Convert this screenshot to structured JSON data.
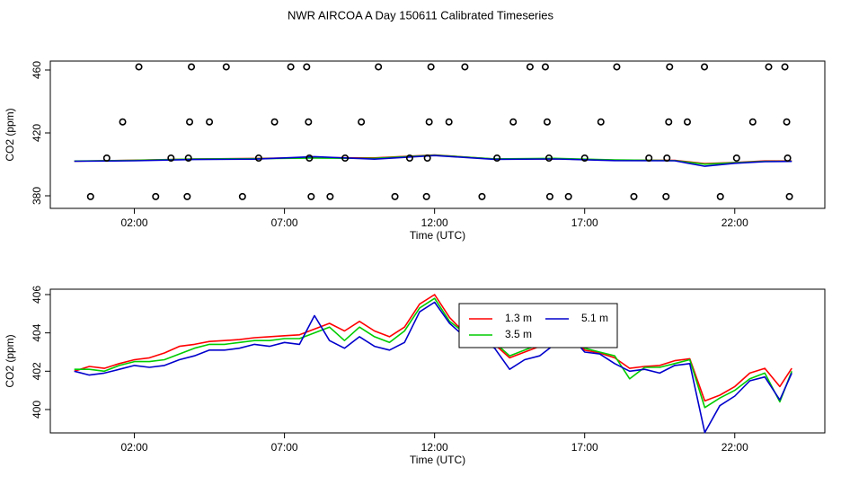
{
  "title": "NWR AIRCOA A  Day 150611  Calibrated Timeseries",
  "chart_data": [
    {
      "type": "line",
      "xlabel": "Time (UTC)",
      "ylabel": "CO2 (ppm)",
      "xlim": [
        -0.8,
        25.0
      ],
      "xticks": [
        {
          "value": 2,
          "label": "02:00"
        },
        {
          "value": 7,
          "label": "07:00"
        },
        {
          "value": 12,
          "label": "12:00"
        },
        {
          "value": 17,
          "label": "17:00"
        },
        {
          "value": 22,
          "label": "22:00"
        }
      ],
      "ylim": [
        372,
        465.7
      ],
      "yticks": [
        380,
        420,
        460
      ],
      "x": [
        0,
        2,
        4,
        6,
        8,
        10,
        12,
        14,
        16,
        18,
        20,
        21,
        22,
        23,
        23.9
      ],
      "series": [
        {
          "color": "#ff0000",
          "values": [
            402.0,
            402.6,
            403.4,
            403.75,
            404.2,
            404.1,
            406.0,
            403.4,
            403.55,
            402.7,
            402.55,
            400.45,
            401.2,
            402.15,
            402.15
          ]
        },
        {
          "color": "#00cc00",
          "values": [
            402.1,
            402.5,
            403.4,
            403.6,
            404.0,
            403.8,
            405.8,
            403.5,
            403.8,
            402.8,
            402.4,
            400.1,
            401.0,
            401.9,
            402.0
          ]
        },
        {
          "color": "#0000cc",
          "values": [
            402.0,
            402.3,
            403.1,
            403.3,
            404.9,
            403.3,
            405.6,
            403.2,
            403.4,
            402.4,
            402.3,
            398.8,
            400.7,
            401.7,
            401.9
          ]
        }
      ],
      "points": {
        "color": "#000000",
        "x": [
          2.15,
          3.9,
          5.06,
          7.21,
          7.74,
          10.13,
          11.88,
          13.01,
          15.18,
          15.69,
          18.07,
          19.83,
          20.99,
          23.13,
          23.67,
          1.61,
          3.84,
          4.5,
          6.67,
          7.8,
          9.56,
          11.82,
          12.48,
          14.62,
          15.75,
          17.54,
          19.8,
          20.42,
          22.6,
          23.73,
          1.08,
          3.22,
          3.8,
          6.14,
          7.83,
          9.02,
          11.17,
          11.76,
          14.08,
          15.81,
          17.0,
          19.14,
          19.74,
          22.06,
          23.76,
          0.54,
          2.71,
          3.76,
          5.6,
          7.89,
          8.52,
          10.68,
          11.73,
          13.58,
          15.84,
          16.46,
          18.64,
          19.71,
          21.52,
          23.82
        ],
        "y": [
          462,
          462,
          462,
          462,
          462,
          462,
          462,
          462,
          462,
          462,
          462,
          462,
          462,
          462,
          462,
          427,
          427,
          427,
          427,
          427,
          427,
          427,
          427,
          427,
          427,
          427,
          427,
          427,
          427,
          427,
          404,
          404,
          404,
          404,
          404,
          404,
          404,
          404,
          404,
          404,
          404,
          404,
          404,
          404,
          404,
          379.5,
          379.5,
          379.5,
          379.5,
          379.5,
          379.5,
          379.5,
          379.5,
          379.5,
          379.5,
          379.5,
          379.5,
          379.5,
          379.5,
          379.5
        ]
      }
    },
    {
      "type": "line",
      "xlabel": "Time (UTC)",
      "ylabel": "CO2 (ppm)",
      "xlim": [
        -0.8,
        25.0
      ],
      "xticks": [
        {
          "value": 2,
          "label": "02:00"
        },
        {
          "value": 7,
          "label": "07:00"
        },
        {
          "value": 12,
          "label": "12:00"
        },
        {
          "value": 17,
          "label": "17:00"
        },
        {
          "value": 22,
          "label": "22:00"
        }
      ],
      "ylim": [
        398.78,
        406.28
      ],
      "yticks": [
        400,
        402,
        404,
        406
      ],
      "legend": "top-center",
      "x": [
        0,
        0.5,
        1,
        1.5,
        2,
        2.5,
        3,
        3.5,
        4,
        4.5,
        5,
        5.5,
        6,
        6.5,
        7,
        7.5,
        8,
        8.5,
        9,
        9.5,
        10,
        10.5,
        11,
        11.5,
        12,
        12.5,
        13,
        13.5,
        14,
        14.5,
        15,
        15.5,
        16,
        16.5,
        17,
        17.5,
        18,
        18.5,
        19,
        19.5,
        20,
        20.5,
        21,
        21.5,
        22,
        22.5,
        23,
        23.5,
        23.9
      ],
      "series": [
        {
          "name": "1.3 m",
          "color": "#ff0000",
          "values": [
            402.0,
            402.25,
            402.15,
            402.4,
            402.6,
            402.7,
            402.95,
            403.3,
            403.4,
            403.55,
            403.6,
            403.65,
            403.75,
            403.8,
            403.85,
            403.9,
            404.2,
            404.5,
            404.1,
            404.6,
            404.1,
            403.8,
            404.3,
            405.5,
            406.0,
            404.8,
            404.0,
            403.9,
            403.4,
            402.7,
            403.0,
            403.3,
            403.55,
            404.0,
            403.1,
            402.95,
            402.7,
            402.15,
            402.25,
            402.3,
            402.55,
            402.65,
            400.45,
            400.75,
            401.2,
            401.9,
            402.15,
            401.2,
            402.15
          ]
        },
        {
          "name": "3.5 m",
          "color": "#00cc00",
          "values": [
            402.1,
            402.1,
            402.0,
            402.3,
            402.5,
            402.5,
            402.6,
            402.9,
            403.2,
            403.4,
            403.4,
            403.5,
            403.6,
            403.6,
            403.7,
            403.7,
            404.0,
            404.3,
            403.6,
            404.3,
            403.8,
            403.5,
            404.1,
            405.3,
            405.8,
            404.6,
            404.0,
            403.8,
            403.5,
            402.8,
            403.1,
            403.4,
            403.8,
            404.3,
            403.2,
            403.0,
            402.8,
            401.6,
            402.2,
            402.2,
            402.4,
            402.6,
            400.1,
            400.6,
            401.0,
            401.6,
            401.9,
            400.4,
            402.0
          ]
        },
        {
          "name": "5.1 m",
          "color": "#0000cc",
          "values": [
            402.0,
            401.8,
            401.9,
            402.1,
            402.3,
            402.2,
            402.3,
            402.6,
            402.8,
            403.1,
            403.1,
            403.2,
            403.4,
            403.3,
            403.5,
            403.4,
            404.9,
            403.6,
            403.2,
            403.8,
            403.3,
            403.1,
            403.5,
            405.1,
            405.6,
            404.5,
            403.8,
            403.6,
            403.2,
            402.1,
            402.6,
            402.8,
            403.4,
            403.9,
            403.0,
            402.9,
            402.4,
            402.0,
            402.1,
            401.9,
            402.3,
            402.4,
            398.8,
            400.2,
            400.7,
            401.5,
            401.7,
            400.5,
            401.9
          ]
        }
      ]
    }
  ]
}
